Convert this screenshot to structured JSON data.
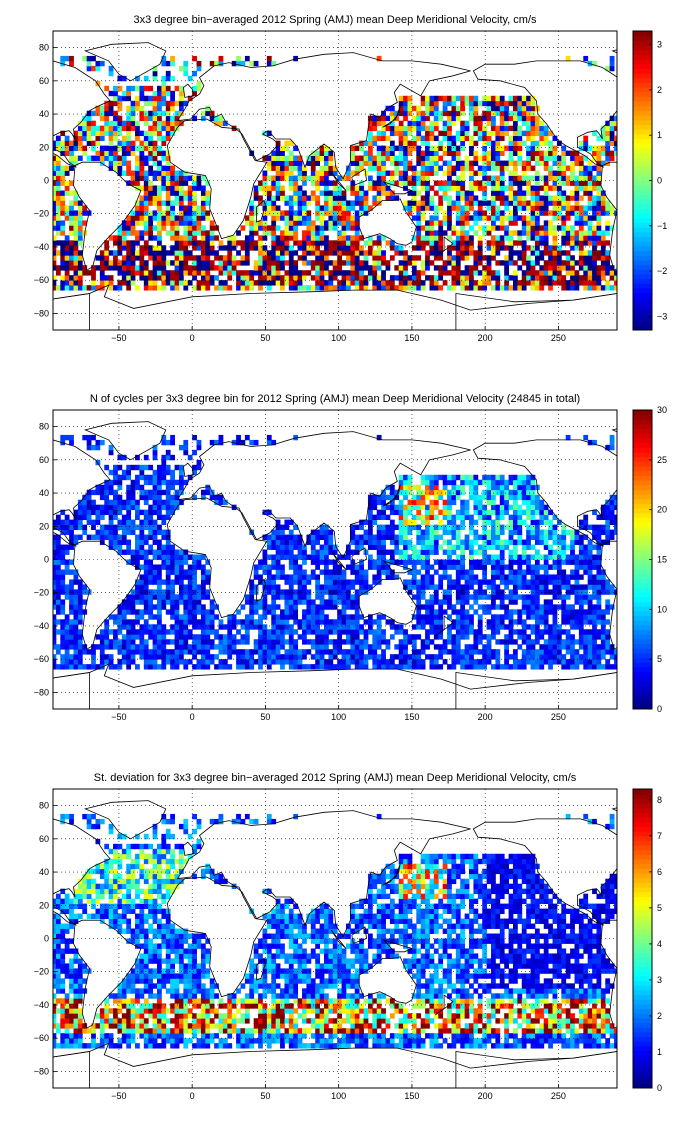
{
  "chart_data": [
    {
      "type": "heatmap",
      "title": "3x3 degree bin−averaged 2012 Spring (AMJ) mean Deep Meridional Velocity, cm/s",
      "xlabel": "",
      "ylabel": "",
      "xlim": [
        -95,
        290
      ],
      "ylim": [
        -90,
        90
      ],
      "x_ticks": [
        "−50",
        "0",
        "50",
        "100",
        "150",
        "200",
        "250"
      ],
      "y_ticks": [
        "80",
        "60",
        "40",
        "20",
        "0",
        "−20",
        "−40",
        "−60",
        "−80"
      ],
      "grid": true,
      "bin_size_deg": 3,
      "colormap": "jet",
      "colorbar": {
        "min": -3.3,
        "max": 3.3,
        "ticks": [
          "3",
          "2",
          "1",
          "0",
          "−1",
          "−2",
          "−3"
        ]
      }
    },
    {
      "type": "heatmap",
      "title": "N of cycles per 3x3 degree bin for 2012 Spring (AMJ) mean Deep Meridional Velocity (24845 in total)",
      "xlabel": "",
      "ylabel": "",
      "xlim": [
        -95,
        290
      ],
      "ylim": [
        -90,
        90
      ],
      "x_ticks": [
        "−50",
        "0",
        "50",
        "100",
        "150",
        "200",
        "250"
      ],
      "y_ticks": [
        "80",
        "60",
        "40",
        "20",
        "0",
        "−20",
        "−40",
        "−60",
        "−80"
      ],
      "grid": true,
      "bin_size_deg": 3,
      "colormap": "jet",
      "colorbar": {
        "min": 0,
        "max": 30,
        "ticks": [
          "30",
          "25",
          "20",
          "15",
          "10",
          "5",
          "0"
        ]
      }
    },
    {
      "type": "heatmap",
      "title": "St. deviation for 3x3 degree bin−averaged 2012 Spring (AMJ) mean Deep Meridional Velocity, cm/s",
      "xlabel": "",
      "ylabel": "",
      "xlim": [
        -95,
        290
      ],
      "ylim": [
        -90,
        90
      ],
      "x_ticks": [
        "−50",
        "0",
        "50",
        "100",
        "150",
        "200",
        "250"
      ],
      "y_ticks": [
        "80",
        "60",
        "40",
        "20",
        "0",
        "−20",
        "−40",
        "−60",
        "−80"
      ],
      "grid": true,
      "bin_size_deg": 3,
      "colormap": "jet",
      "colorbar": {
        "min": 0,
        "max": 8.3,
        "ticks": [
          "8",
          "7",
          "6",
          "5",
          "4",
          "3",
          "2",
          "1",
          "0"
        ]
      }
    }
  ]
}
